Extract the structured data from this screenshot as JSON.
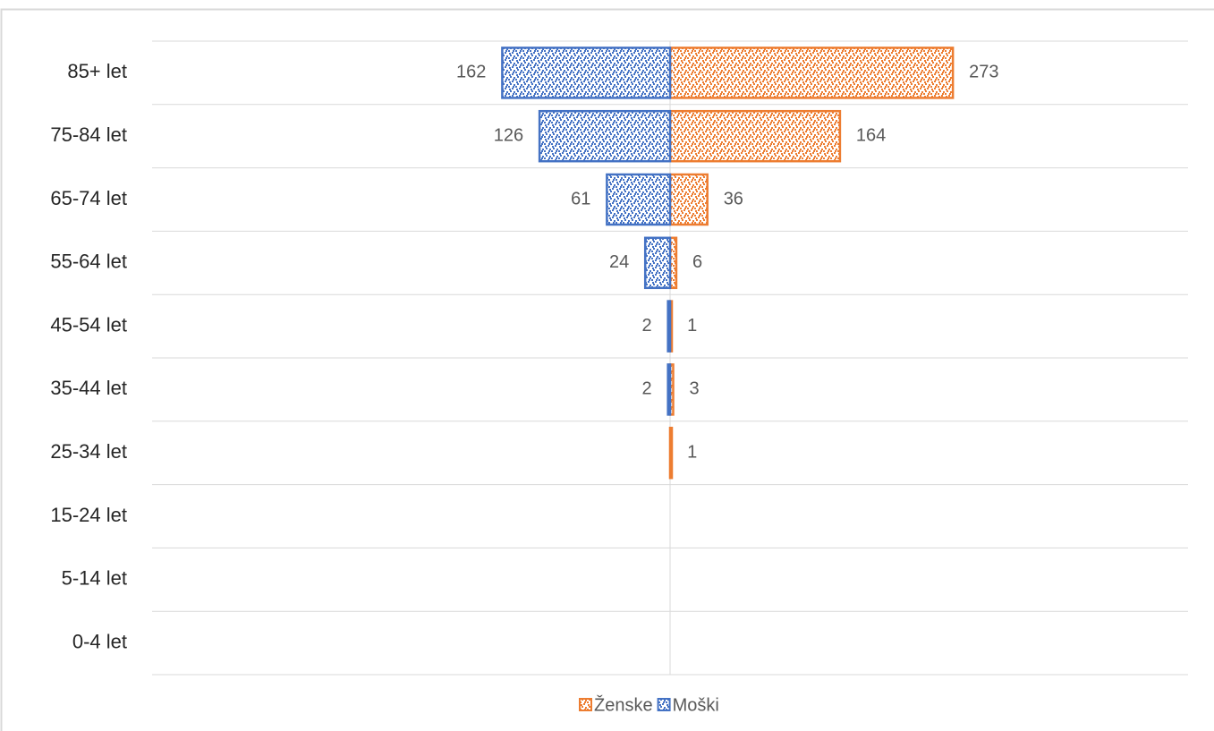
{
  "chart_data": {
    "type": "pyramid",
    "categories": [
      "85+ let",
      "75-84 let",
      "65-74 let",
      "55-64 let",
      "45-54 let",
      "35-44 let",
      "25-34 let",
      "15-24 let",
      "5-14 let",
      "0-4 let"
    ],
    "series": [
      {
        "name": "Ženske",
        "color": "#ed7d31",
        "side": "right",
        "values": [
          273,
          164,
          36,
          6,
          1,
          3,
          1,
          null,
          null,
          null
        ]
      },
      {
        "name": "Moški",
        "color": "#4472c4",
        "side": "left",
        "values": [
          162,
          126,
          61,
          24,
          2,
          2,
          null,
          null,
          null,
          null
        ]
      }
    ],
    "xlim": [
      -500,
      500
    ],
    "grid": true,
    "legend": "bottom"
  }
}
